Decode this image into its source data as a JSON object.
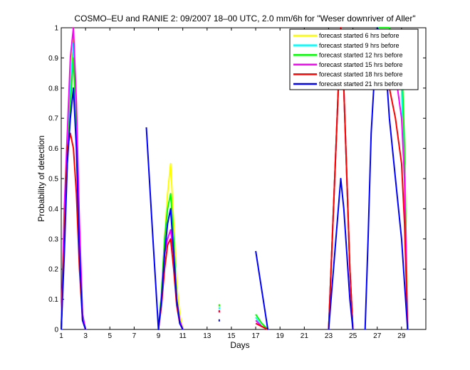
{
  "chart_data": {
    "type": "line",
    "title": "COSMO–EU and RANIE 2: 09/2007 18–00 UTC, 2.0 mm/6h for \"Weser downriver of Aller\"",
    "xlabel": "Days",
    "ylabel": "Probability of detection",
    "xlim": [
      1,
      31
    ],
    "ylim": [
      0,
      1
    ],
    "x_ticks": [
      "1",
      "3",
      "5",
      "7",
      "9",
      "11",
      "13",
      "15",
      "17",
      "19",
      "21",
      "23",
      "25",
      "27",
      "29"
    ],
    "y_ticks": [
      "0",
      "0.1",
      "0.2",
      "0.3",
      "0.4",
      "0.5",
      "0.6",
      "0.7",
      "0.8",
      "0.9",
      "1"
    ],
    "legend_position": "top-right",
    "series": [
      {
        "name": "forecast started 6 hrs before",
        "color": "#ffff00",
        "segments": [
          [
            [
              1,
              0
            ],
            [
              1.25,
              0.4
            ],
            [
              1.5,
              0.6
            ],
            [
              1.75,
              0.85
            ],
            [
              2,
              1
            ],
            [
              2.25,
              0.75
            ],
            [
              2.5,
              0.3
            ],
            [
              2.75,
              0.05
            ],
            [
              3,
              0
            ]
          ],
          [
            [
              9,
              0
            ],
            [
              9.25,
              0.1
            ],
            [
              9.5,
              0.3
            ],
            [
              9.75,
              0.45
            ],
            [
              10,
              0.55
            ],
            [
              10.25,
              0.35
            ],
            [
              10.5,
              0.15
            ],
            [
              10.75,
              0.05
            ],
            [
              11,
              0
            ]
          ],
          [
            [
              17,
              0.04
            ],
            [
              17.5,
              0.01
            ],
            [
              18,
              0
            ]
          ],
          [
            [
              23,
              0
            ],
            [
              23.5,
              0.5
            ],
            [
              24,
              1
            ],
            [
              24.25,
              0.8
            ],
            [
              24.5,
              0.5
            ],
            [
              24.75,
              0.2
            ],
            [
              25,
              0
            ]
          ],
          [
            [
              27,
              1
            ],
            [
              27.5,
              1
            ],
            [
              28,
              1
            ],
            [
              28.5,
              0.95
            ],
            [
              29,
              0.85
            ],
            [
              29.25,
              0.6
            ],
            [
              29.5,
              0
            ]
          ]
        ],
        "points": [
          [
            14,
            0.08
          ]
        ]
      },
      {
        "name": "forecast started 9 hrs before",
        "color": "#00ffff",
        "segments": [
          [
            [
              1,
              0
            ],
            [
              1.25,
              0.35
            ],
            [
              1.5,
              0.55
            ],
            [
              1.75,
              0.8
            ],
            [
              2,
              0.95
            ],
            [
              2.25,
              0.7
            ],
            [
              2.5,
              0.3
            ],
            [
              2.75,
              0.05
            ],
            [
              3,
              0
            ]
          ],
          [
            [
              9,
              0
            ],
            [
              9.25,
              0.1
            ],
            [
              9.5,
              0.25
            ],
            [
              9.75,
              0.35
            ],
            [
              10,
              0.4
            ],
            [
              10.25,
              0.3
            ],
            [
              10.5,
              0.1
            ],
            [
              10.75,
              0.03
            ],
            [
              11,
              0
            ]
          ],
          [
            [
              17,
              0.04
            ],
            [
              17.5,
              0.01
            ],
            [
              18,
              0
            ]
          ],
          [
            [
              23,
              0
            ],
            [
              23.5,
              0.5
            ],
            [
              24,
              1
            ],
            [
              24.25,
              0.8
            ],
            [
              24.5,
              0.5
            ],
            [
              24.75,
              0.2
            ],
            [
              25,
              0
            ]
          ],
          [
            [
              27,
              1
            ],
            [
              27.5,
              1
            ],
            [
              28,
              1
            ],
            [
              28.5,
              0.93
            ],
            [
              29,
              0.8
            ],
            [
              29.25,
              0.5
            ],
            [
              29.5,
              0
            ]
          ]
        ],
        "points": [
          [
            14,
            0.07
          ]
        ]
      },
      {
        "name": "forecast started 12 hrs before",
        "color": "#00ff00",
        "segments": [
          [
            [
              1,
              0
            ],
            [
              1.25,
              0.3
            ],
            [
              1.5,
              0.55
            ],
            [
              1.75,
              0.75
            ],
            [
              2,
              0.9
            ],
            [
              2.25,
              0.65
            ],
            [
              2.5,
              0.3
            ],
            [
              2.75,
              0.05
            ],
            [
              3,
              0
            ]
          ],
          [
            [
              9,
              0
            ],
            [
              9.25,
              0.12
            ],
            [
              9.5,
              0.3
            ],
            [
              9.75,
              0.4
            ],
            [
              10,
              0.45
            ],
            [
              10.25,
              0.3
            ],
            [
              10.5,
              0.1
            ],
            [
              10.75,
              0.03
            ],
            [
              11,
              0
            ]
          ],
          [
            [
              17,
              0.05
            ],
            [
              17.5,
              0.02
            ],
            [
              18,
              0
            ]
          ],
          [
            [
              23,
              0
            ],
            [
              23.5,
              0.5
            ],
            [
              24,
              1
            ],
            [
              24.25,
              0.8
            ],
            [
              24.5,
              0.5
            ],
            [
              24.75,
              0.2
            ],
            [
              25,
              0
            ]
          ],
          [
            [
              27,
              1
            ],
            [
              27.5,
              1
            ],
            [
              28,
              1
            ],
            [
              28.5,
              0.95
            ],
            [
              29,
              0.92
            ],
            [
              29.25,
              0.6
            ],
            [
              29.5,
              0
            ]
          ]
        ],
        "points": [
          [
            14,
            0.08
          ]
        ]
      },
      {
        "name": "forecast started 15 hrs before",
        "color": "#ff00ff",
        "segments": [
          [
            [
              1,
              0
            ],
            [
              1.25,
              0.4
            ],
            [
              1.5,
              0.65
            ],
            [
              1.75,
              0.9
            ],
            [
              2,
              1
            ],
            [
              2.25,
              0.75
            ],
            [
              2.5,
              0.35
            ],
            [
              2.75,
              0.05
            ],
            [
              3,
              0
            ]
          ],
          [
            [
              9,
              0
            ],
            [
              9.25,
              0.1
            ],
            [
              9.5,
              0.25
            ],
            [
              9.75,
              0.3
            ],
            [
              10,
              0.33
            ],
            [
              10.25,
              0.25
            ],
            [
              10.5,
              0.1
            ],
            [
              10.75,
              0.03
            ],
            [
              11,
              0
            ]
          ],
          [
            [
              17,
              0.03
            ],
            [
              17.5,
              0.01
            ],
            [
              18,
              0
            ]
          ],
          [
            [
              23,
              0
            ],
            [
              23.5,
              0.5
            ],
            [
              24,
              1
            ],
            [
              24.25,
              0.8
            ],
            [
              24.5,
              0.5
            ],
            [
              24.75,
              0.2
            ],
            [
              25,
              0
            ]
          ],
          [
            [
              27,
              1
            ],
            [
              27.5,
              0.97
            ],
            [
              28,
              0.93
            ],
            [
              28.5,
              0.85
            ],
            [
              29,
              0.7
            ],
            [
              29.25,
              0.5
            ],
            [
              29.5,
              0
            ]
          ]
        ],
        "points": [
          [
            14,
            0.06
          ]
        ]
      },
      {
        "name": "forecast started 18 hrs before",
        "color": "#ff0000",
        "segments": [
          [
            [
              1,
              0
            ],
            [
              1.25,
              0.3
            ],
            [
              1.5,
              0.6
            ],
            [
              1.75,
              0.65
            ],
            [
              2,
              0.6
            ],
            [
              2.25,
              0.45
            ],
            [
              2.5,
              0.2
            ],
            [
              2.75,
              0.03
            ],
            [
              3,
              0
            ]
          ],
          [
            [
              9,
              0
            ],
            [
              9.25,
              0.08
            ],
            [
              9.5,
              0.2
            ],
            [
              9.75,
              0.28
            ],
            [
              10,
              0.3
            ],
            [
              10.25,
              0.2
            ],
            [
              10.5,
              0.08
            ],
            [
              10.75,
              0.02
            ],
            [
              11,
              0
            ]
          ],
          [
            [
              17,
              0.02
            ],
            [
              17.5,
              0.01
            ],
            [
              18,
              0
            ]
          ],
          [
            [
              23,
              0
            ],
            [
              23.5,
              0.5
            ],
            [
              24,
              1
            ],
            [
              24.25,
              0.8
            ],
            [
              24.5,
              0.5
            ],
            [
              24.75,
              0.2
            ],
            [
              25,
              0
            ]
          ],
          [
            [
              27,
              0.98
            ],
            [
              27.5,
              0.9
            ],
            [
              28,
              0.8
            ],
            [
              28.5,
              0.7
            ],
            [
              29,
              0.55
            ],
            [
              29.25,
              0.35
            ],
            [
              29.5,
              0
            ]
          ]
        ],
        "points": [
          [
            14,
            0.06
          ]
        ]
      },
      {
        "name": "forecast started 21 hrs before",
        "color": "#0000ff",
        "segments": [
          [
            [
              1,
              0
            ],
            [
              1.25,
              0.25
            ],
            [
              1.5,
              0.55
            ],
            [
              1.75,
              0.7
            ],
            [
              2,
              0.8
            ],
            [
              2.25,
              0.6
            ],
            [
              2.5,
              0.25
            ],
            [
              2.75,
              0.03
            ],
            [
              3,
              0
            ]
          ],
          [
            [
              8,
              0.67
            ],
            [
              8.5,
              0.33
            ],
            [
              9,
              0
            ],
            [
              9.25,
              0.1
            ],
            [
              9.5,
              0.25
            ],
            [
              9.75,
              0.35
            ],
            [
              10,
              0.4
            ],
            [
              10.25,
              0.25
            ],
            [
              10.5,
              0.1
            ],
            [
              10.75,
              0.02
            ],
            [
              11,
              0
            ]
          ],
          [
            [
              17,
              0.26
            ],
            [
              17.5,
              0.13
            ],
            [
              18,
              0
            ]
          ],
          [
            [
              23,
              0
            ],
            [
              23.5,
              0.25
            ],
            [
              24,
              0.5
            ],
            [
              24.25,
              0.4
            ],
            [
              24.5,
              0.25
            ],
            [
              24.75,
              0.1
            ],
            [
              25,
              0
            ]
          ],
          [
            [
              26,
              0
            ],
            [
              26.25,
              0.3
            ],
            [
              26.5,
              0.65
            ],
            [
              27,
              1
            ],
            [
              27.5,
              0.95
            ],
            [
              27.75,
              0.85
            ],
            [
              28,
              0.7
            ],
            [
              28.5,
              0.5
            ],
            [
              29,
              0.3
            ],
            [
              29.25,
              0.15
            ],
            [
              29.5,
              0
            ]
          ]
        ],
        "points": [
          [
            14,
            0.03
          ]
        ]
      }
    ]
  }
}
